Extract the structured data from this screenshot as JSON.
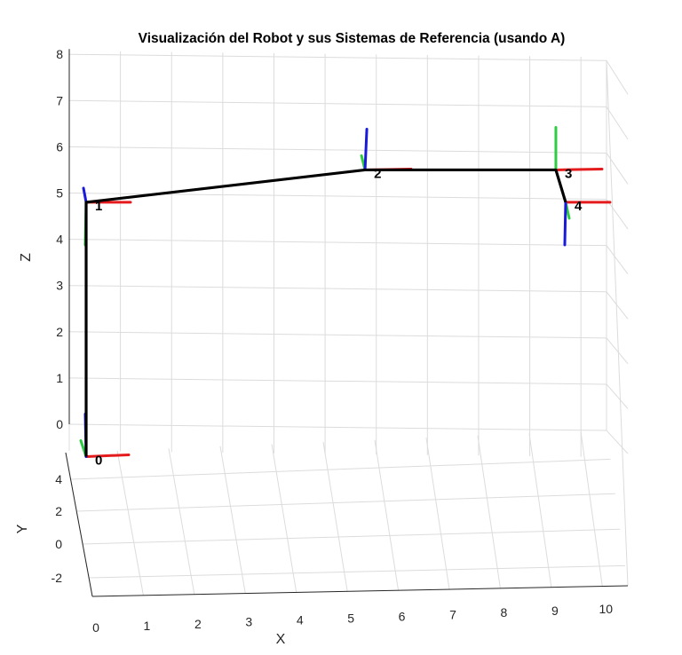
{
  "chart_data": {
    "type": "line",
    "title": "Visualización del Robot y sus Sistemas de Referencia (usando A)",
    "xlabel": "X",
    "ylabel": "Y",
    "zlabel": "Z",
    "x_ticks": [
      "0",
      "1",
      "2",
      "3",
      "4",
      "5",
      "6",
      "7",
      "8",
      "9",
      "10"
    ],
    "y_ticks": [
      "-2",
      "0",
      "2",
      "4"
    ],
    "z_ticks": [
      "0",
      "1",
      "2",
      "3",
      "4",
      "5",
      "6",
      "7",
      "8"
    ],
    "xlim": [
      0,
      10.5
    ],
    "zlim": [
      0,
      8
    ],
    "grid": true,
    "link_color": "#000000",
    "axis_colors": {
      "x": "#e41a1c",
      "y": "#2ecc40",
      "z": "#1a1adb"
    },
    "frames": [
      {
        "label": "0",
        "x": 0,
        "z": -0.7
      },
      {
        "label": "1",
        "x": 0,
        "z": 4.8
      },
      {
        "label": "2",
        "x": 5.7,
        "z": 5.5
      },
      {
        "label": "3",
        "x": 9.6,
        "z": 5.5
      },
      {
        "label": "4",
        "x": 9.8,
        "z": 4.8
      }
    ]
  }
}
